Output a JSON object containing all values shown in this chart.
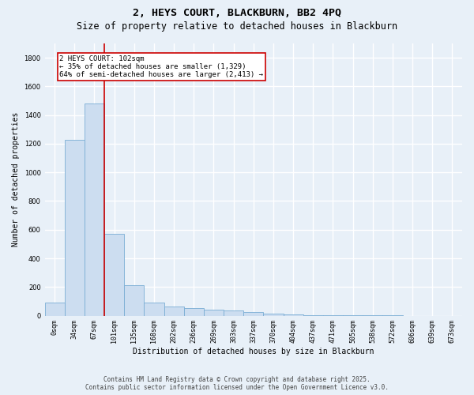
{
  "title_line1": "2, HEYS COURT, BLACKBURN, BB2 4PQ",
  "title_line2": "Size of property relative to detached houses in Blackburn",
  "xlabel": "Distribution of detached houses by size in Blackburn",
  "ylabel": "Number of detached properties",
  "categories": [
    "0sqm",
    "34sqm",
    "67sqm",
    "101sqm",
    "135sqm",
    "168sqm",
    "202sqm",
    "236sqm",
    "269sqm",
    "303sqm",
    "337sqm",
    "370sqm",
    "404sqm",
    "437sqm",
    "471sqm",
    "505sqm",
    "538sqm",
    "572sqm",
    "606sqm",
    "639sqm",
    "673sqm"
  ],
  "values": [
    90,
    1230,
    1480,
    570,
    215,
    90,
    65,
    55,
    40,
    35,
    25,
    15,
    8,
    5,
    3,
    2,
    1,
    1,
    0,
    0,
    0
  ],
  "bar_color": "#ccddf0",
  "bar_edge_color": "#7aadd4",
  "vline_x": 2.5,
  "vline_color": "#cc0000",
  "annotation_box_text": "2 HEYS COURT: 102sqm\n← 35% of detached houses are smaller (1,329)\n64% of semi-detached houses are larger (2,413) →",
  "ylim": [
    0,
    1900
  ],
  "yticks": [
    0,
    200,
    400,
    600,
    800,
    1000,
    1200,
    1400,
    1600,
    1800
  ],
  "footer_line1": "Contains HM Land Registry data © Crown copyright and database right 2025.",
  "footer_line2": "Contains public sector information licensed under the Open Government Licence v3.0.",
  "bg_color": "#e8f0f8",
  "plot_bg_color": "#e8f0f8",
  "grid_color": "#ffffff",
  "title_fontsize": 9.5,
  "subtitle_fontsize": 8.5,
  "annotation_fontsize": 6.5,
  "axis_label_fontsize": 7,
  "tick_fontsize": 6,
  "footer_fontsize": 5.5
}
